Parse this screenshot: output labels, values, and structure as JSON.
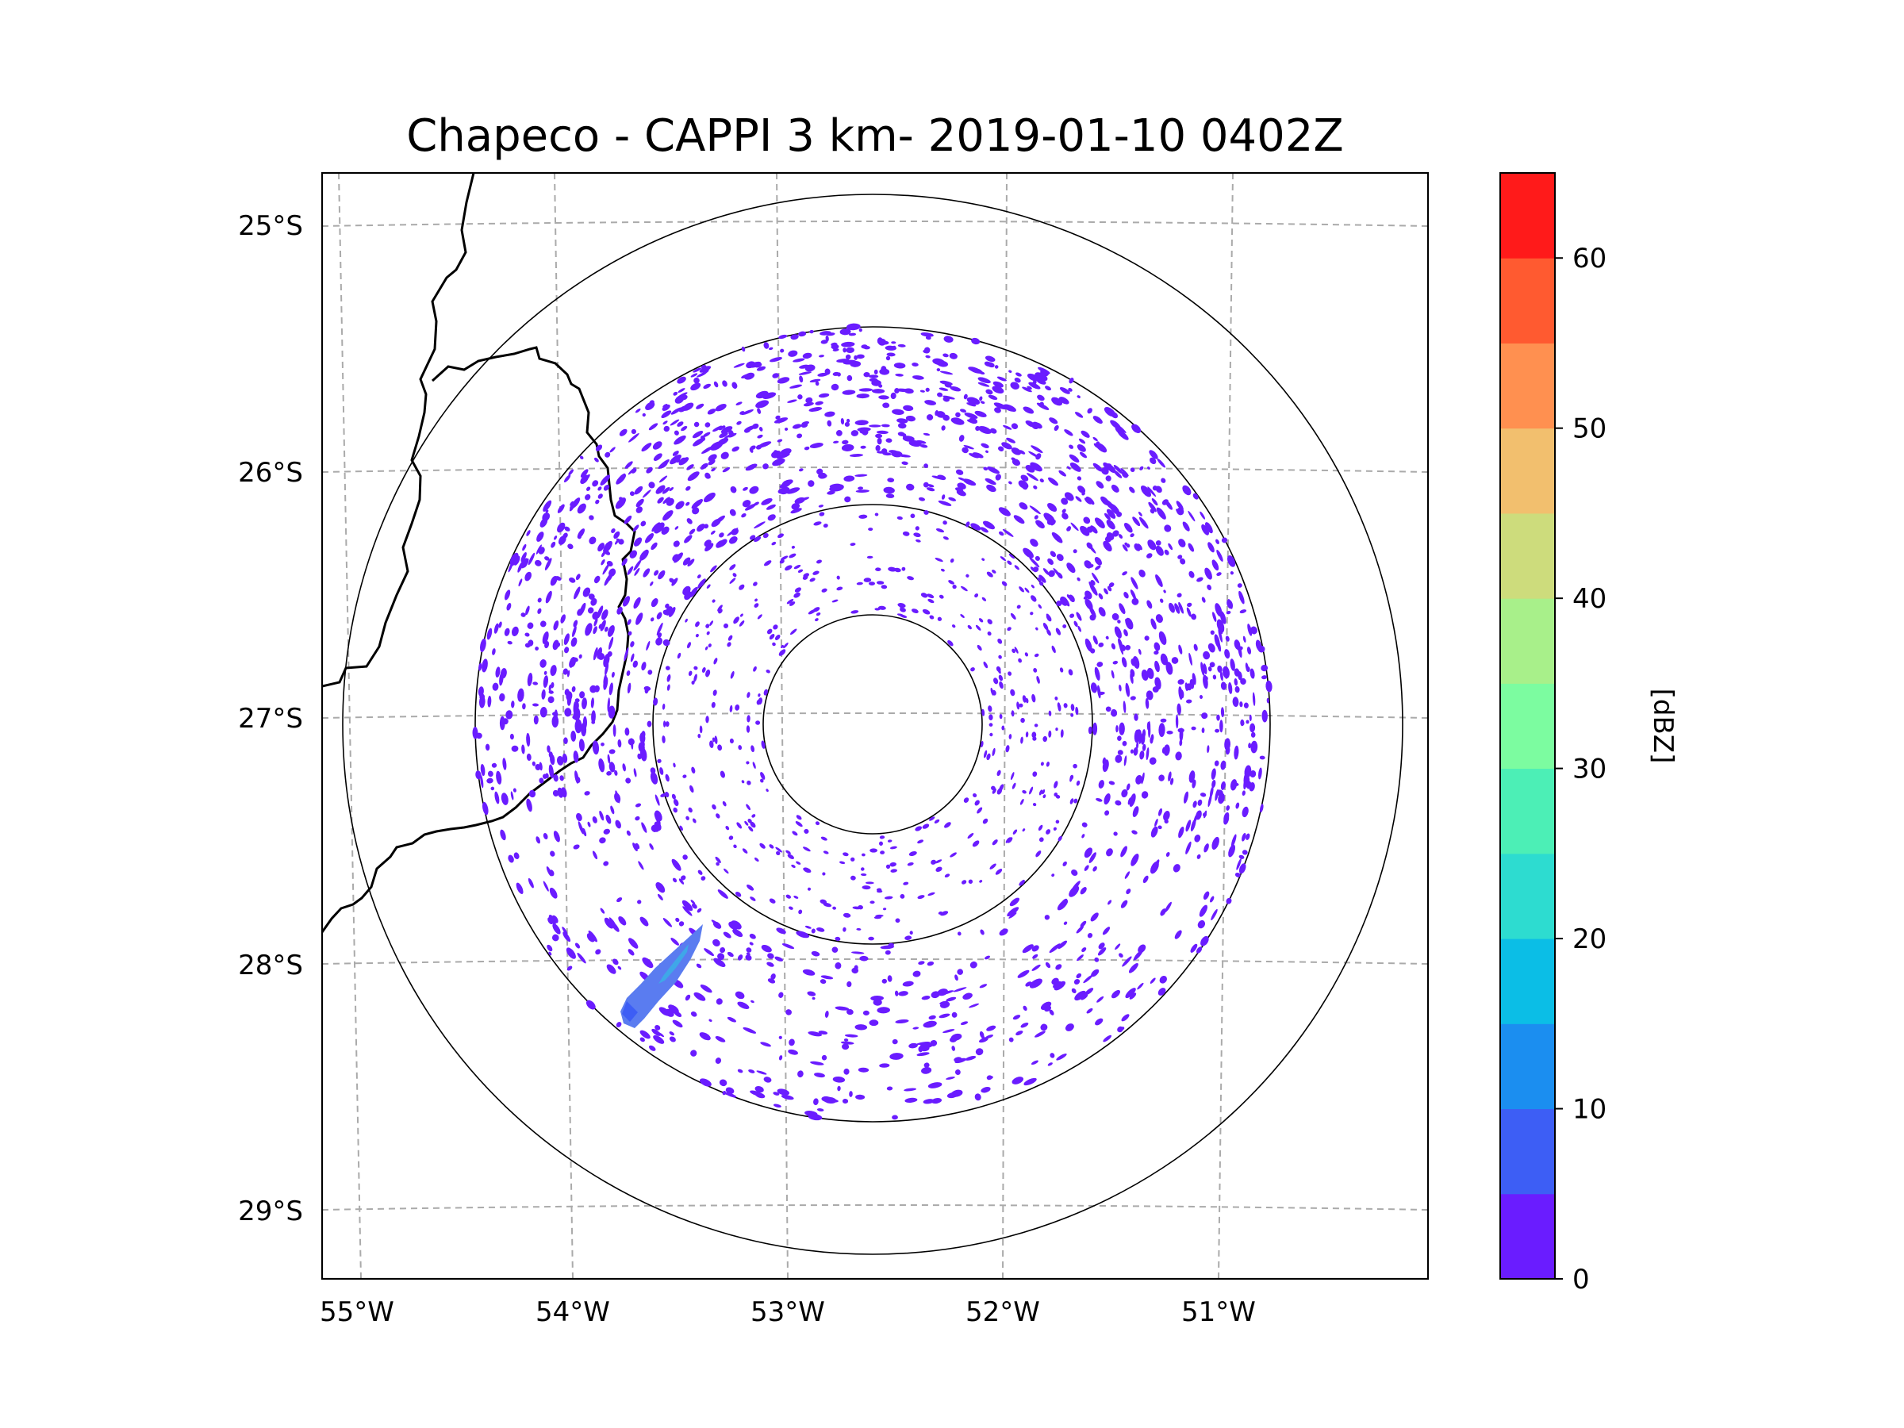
{
  "chart_data": {
    "type": "radar_ppi_map",
    "title": "Chapeco - CAPPI 3 km- 2019-01-10 0402Z",
    "station": "Chapeco",
    "product": "CAPPI 3 km",
    "datetime": "2019-01-10 0402Z",
    "lon_range": [
      -55.1,
      -50.05
    ],
    "lat_range": [
      -29.2,
      -24.8
    ],
    "radar_center": {
      "lon": -52.6,
      "lat": -27.0
    },
    "range_rings_deg": [
      0.5,
      1.0,
      1.45,
      2.15
    ],
    "x_ticks": [
      "55°W",
      "54°W",
      "53°W",
      "52°W",
      "51°W"
    ],
    "x_tick_values": [
      -55,
      -54,
      -53,
      -52,
      -51
    ],
    "y_ticks": [
      "25°S",
      "26°S",
      "27°S",
      "28°S",
      "29°S"
    ],
    "y_tick_values": [
      -25,
      -26,
      -27,
      -28,
      -29
    ],
    "gridlines": "dashed",
    "colorbar": {
      "label": "[dBZ]",
      "min": 0,
      "max": 65,
      "step": 5,
      "tick_labels": [
        "0",
        "10",
        "20",
        "30",
        "40",
        "50",
        "60"
      ],
      "tick_values": [
        0,
        10,
        20,
        30,
        40,
        50,
        60
      ],
      "colors": [
        "#6a1cff",
        "#3d5ef5",
        "#1b8ef0",
        "#0bbee6",
        "#2ddcd0",
        "#4cefb6",
        "#7cfca0",
        "#a8f08a",
        "#cddc7c",
        "#f2bf6e",
        "#ff9050",
        "#ff5a30",
        "#ff1a1a"
      ]
    },
    "echo_color": "#6a1cff",
    "feature_color": "#5a7cf0"
  }
}
